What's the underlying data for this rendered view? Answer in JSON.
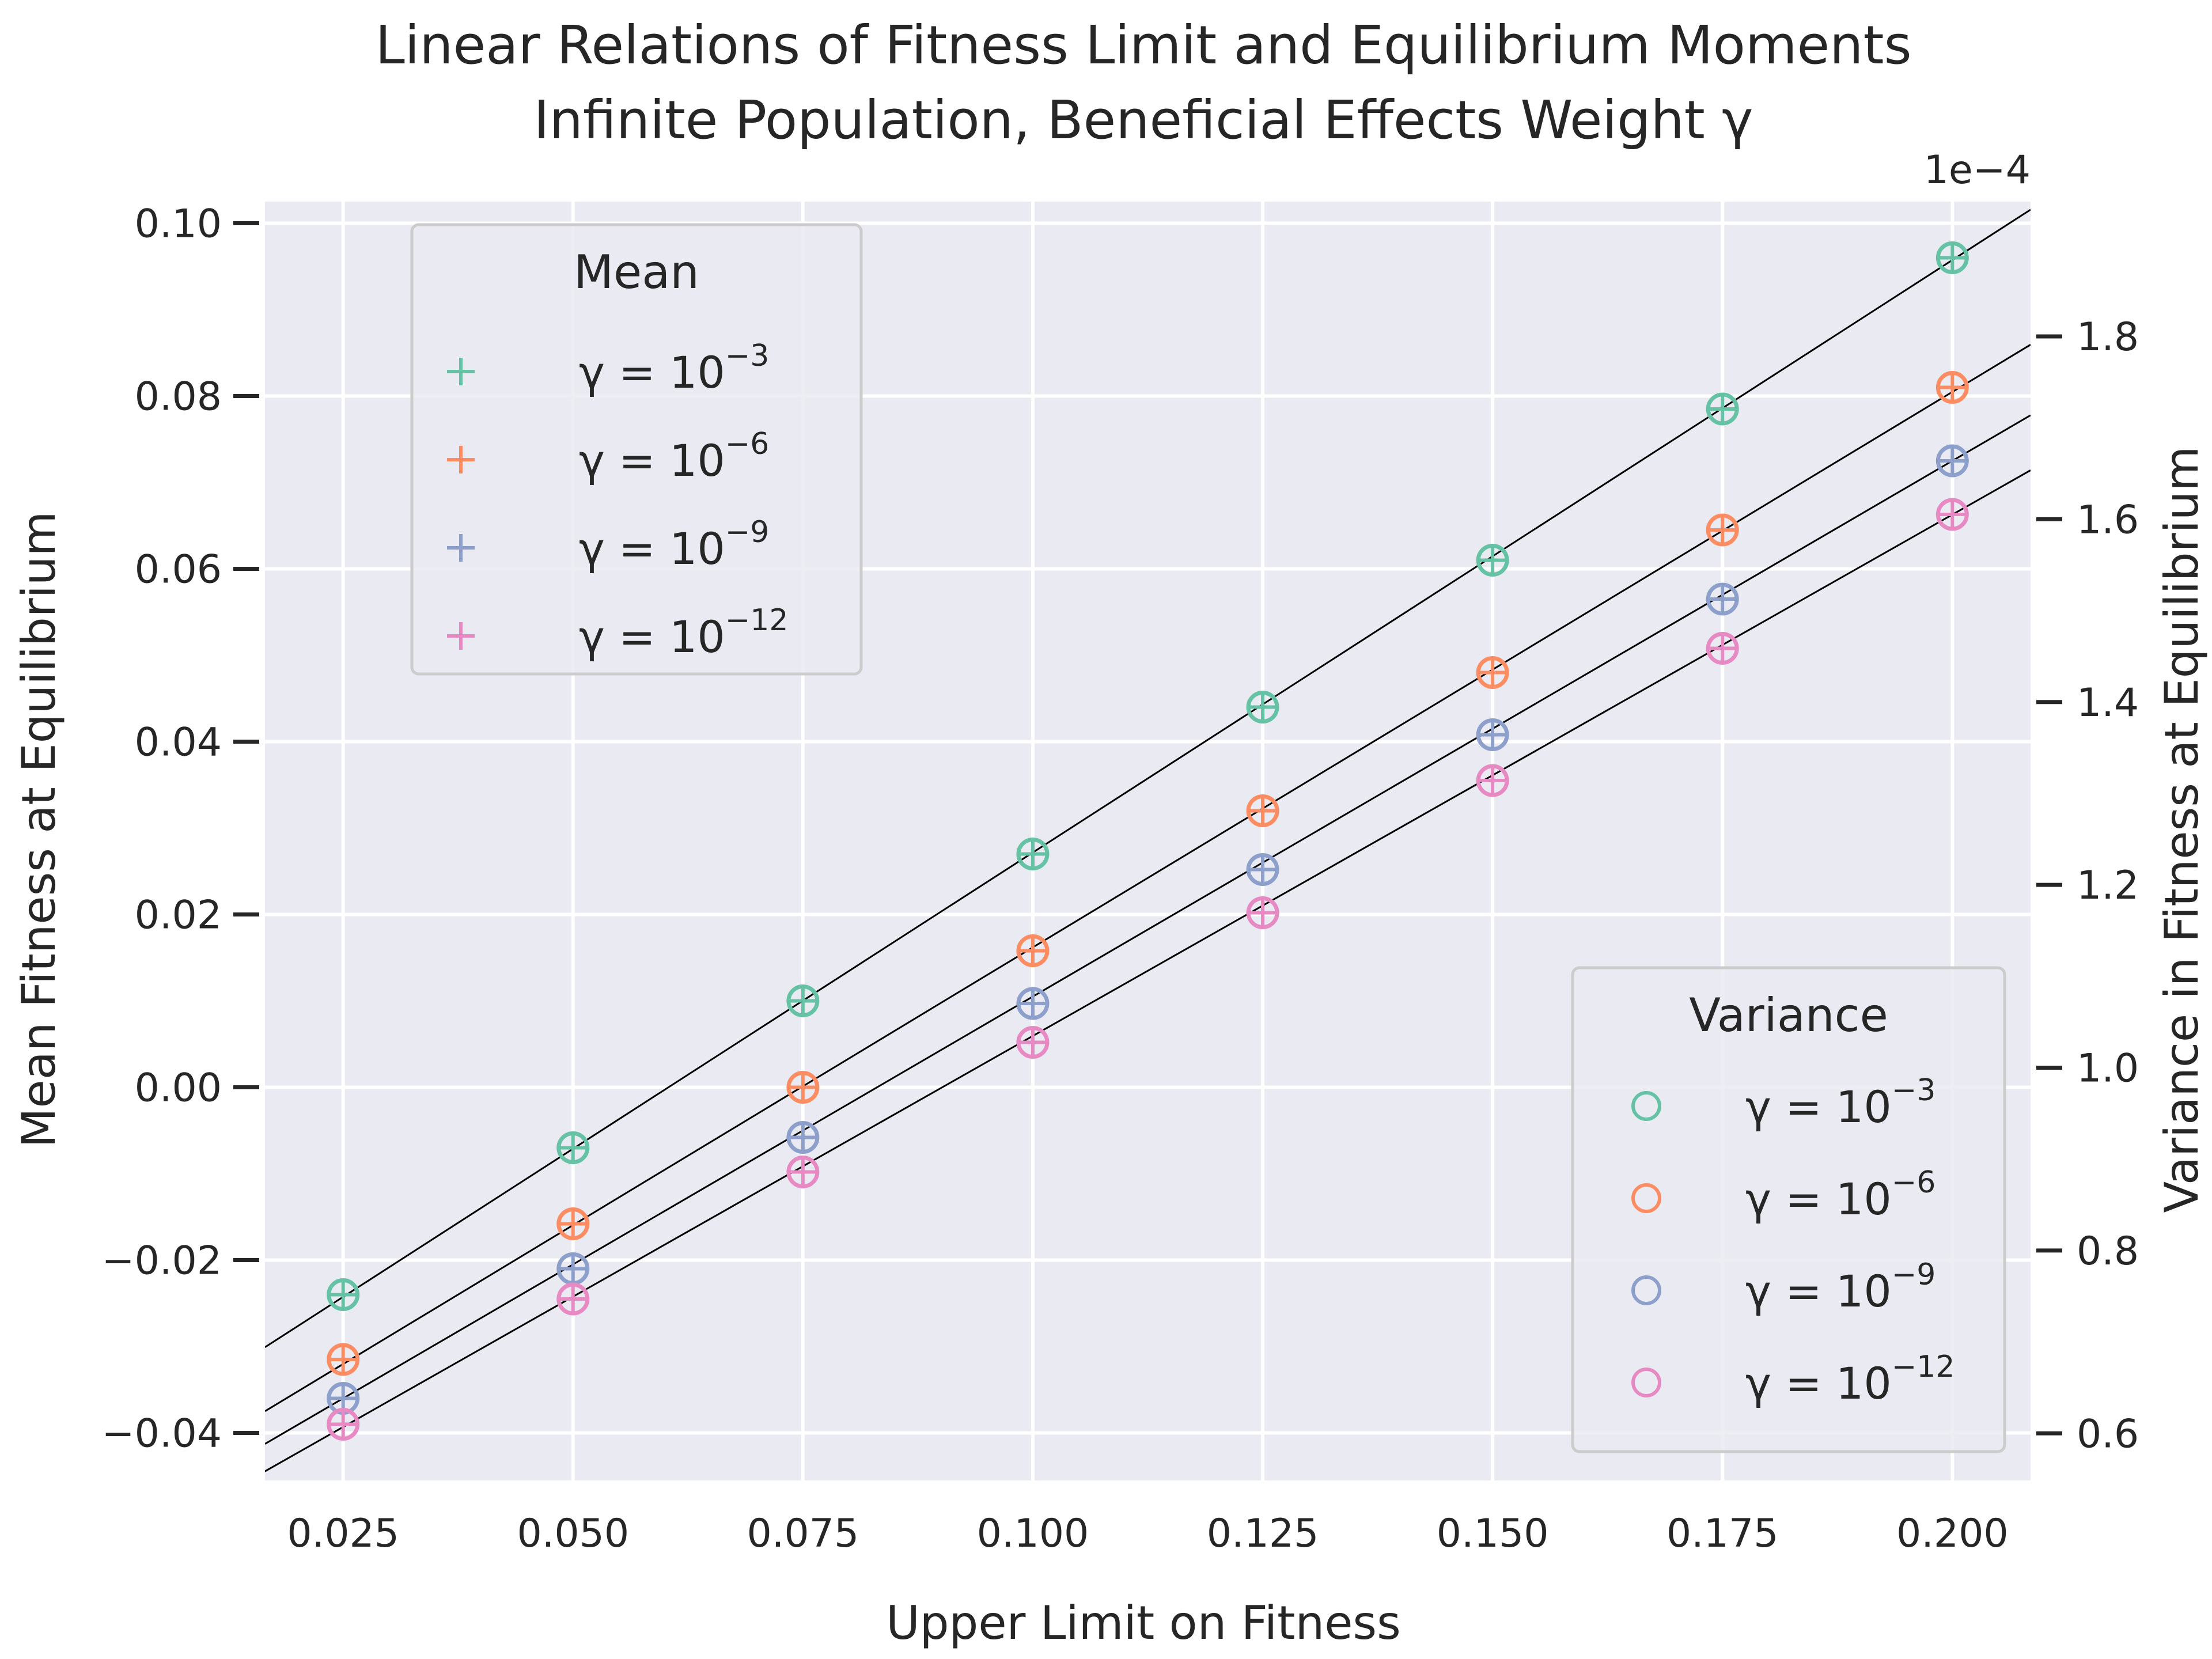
{
  "chart_data": {
    "type": "scatter",
    "title": "Linear Relations of Fitness Limit and Equilibrium Moments",
    "subtitle": "Infinite Population, Beneficial Effects Weight γ",
    "xlabel": "Upper Limit on Fitness",
    "ylabel": "Mean Fitness at Equilibrium",
    "y2label": "Variance in Fitness at Equilibrium",
    "y2_offset_label": "1e−4",
    "xlim": [
      0.0165,
      0.2085
    ],
    "ylim": [
      -0.0455,
      0.1025
    ],
    "y2lim": [
      0.5485,
      1.9475
    ],
    "x_ticks": [
      0.025,
      0.05,
      0.075,
      0.1,
      0.125,
      0.15,
      0.175,
      0.2
    ],
    "x_tick_labels": [
      "0.025",
      "0.050",
      "0.075",
      "0.100",
      "0.125",
      "0.150",
      "0.175",
      "0.200"
    ],
    "y_ticks": [
      -0.04,
      -0.02,
      0.0,
      0.02,
      0.04,
      0.06,
      0.08,
      0.1
    ],
    "y_tick_labels": [
      "−0.04",
      "−0.02",
      "0.00",
      "0.02",
      "0.04",
      "0.06",
      "0.08",
      "0.10"
    ],
    "y2_ticks": [
      0.6,
      0.8,
      1.0,
      1.2,
      1.4,
      1.6,
      1.8
    ],
    "y2_tick_labels": [
      "0.6",
      "0.8",
      "1.0",
      "1.2",
      "1.4",
      "1.6",
      "1.8"
    ],
    "grid": true,
    "background": "#eaeaf2",
    "x": [
      0.025,
      0.05,
      0.075,
      0.1,
      0.125,
      0.15,
      0.175,
      0.2
    ],
    "series": [
      {
        "label_base": "γ = 10",
        "label_exp": "−3",
        "color": "#66c2a5",
        "mean": [
          -0.024,
          -0.007,
          0.01,
          0.027,
          0.044,
          0.061,
          0.0785,
          0.096
        ]
      },
      {
        "label_base": "γ = 10",
        "label_exp": "−6",
        "color": "#fc8d62",
        "mean": [
          -0.0315,
          -0.0158,
          0.0,
          0.0158,
          0.032,
          0.048,
          0.0645,
          0.081
        ]
      },
      {
        "label_base": "γ = 10",
        "label_exp": "−9",
        "color": "#8da0cb",
        "mean": [
          -0.036,
          -0.021,
          -0.0058,
          0.0097,
          0.0252,
          0.0408,
          0.0565,
          0.0725
        ]
      },
      {
        "label_base": "γ = 10",
        "label_exp": "−12",
        "color": "#e78ac3",
        "mean": [
          -0.039,
          -0.0245,
          -0.0098,
          0.0052,
          0.0202,
          0.0355,
          0.0508,
          0.0663
        ]
      }
    ],
    "fit_lines": [
      {
        "slope": 0.6857,
        "intercept": -0.0414
      },
      {
        "slope": 0.6429,
        "intercept": -0.0481
      },
      {
        "slope": 0.62,
        "intercept": -0.0515
      },
      {
        "slope": 0.6034,
        "intercept": -0.0544
      }
    ],
    "legends": [
      {
        "title": "Mean",
        "marker": "plus",
        "placement": "upper-left"
      },
      {
        "title": "Variance",
        "marker": "circle",
        "placement": "lower-right"
      }
    ]
  }
}
